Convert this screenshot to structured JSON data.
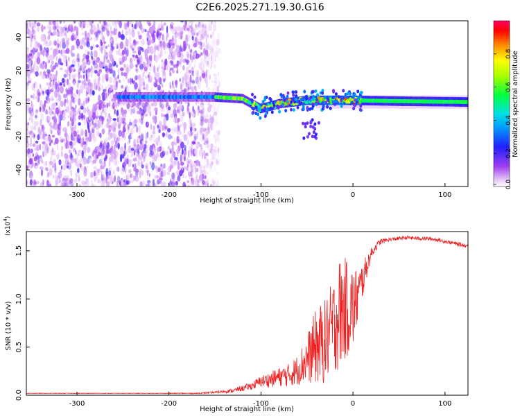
{
  "title": "C2E6.2025.271.19.30.G16",
  "chart_data": [
    {
      "type": "heatmap",
      "xlabel": "Height of straight line (km)",
      "ylabel": "Frequency (Hz)",
      "xlim": [
        -355,
        125
      ],
      "ylim": [
        -50,
        50
      ],
      "xticks": [
        -300,
        -200,
        -100,
        0,
        100
      ],
      "yticks": [
        -40,
        -20,
        0,
        20,
        40
      ],
      "colorbar": {
        "label": "Normalized spectral amplitude",
        "range": [
          0,
          1
        ],
        "ticks": [
          "0.0",
          "0.2",
          "0.4",
          "0.6",
          "0.8"
        ],
        "tick_values": [
          0.0,
          0.2,
          0.4,
          0.6,
          0.8
        ]
      },
      "noise_region_x": [
        -355,
        -145
      ],
      "ridge_center_freq_hz": [
        {
          "x": -250,
          "f": 4
        },
        {
          "x": -200,
          "f": 4
        },
        {
          "x": -150,
          "f": 4
        },
        {
          "x": -120,
          "f": 3
        },
        {
          "x": -100,
          "f": -3
        },
        {
          "x": -80,
          "f": 0
        },
        {
          "x": -50,
          "f": 2
        },
        {
          "x": 0,
          "f": 2
        },
        {
          "x": 50,
          "f": 1.5
        },
        {
          "x": 125,
          "f": 1
        }
      ]
    },
    {
      "type": "line",
      "xlabel": "Height of straight line (km)",
      "ylabel": "SNR (10 * v/v)",
      "exponent_label": "(x10",
      "exponent_power": "4",
      "exponent_close": ")",
      "xlim": [
        -355,
        125
      ],
      "ylim": [
        0,
        1.7
      ],
      "xticks": [
        -300,
        -200,
        -100,
        0,
        100
      ],
      "yticks": [
        "0.0",
        "0.5",
        "1.0",
        "1.5"
      ],
      "ytick_values": [
        0.0,
        0.5,
        1.0,
        1.5
      ],
      "color": "#ee2222",
      "series": [
        {
          "name": "SNR",
          "x": [
            -355,
            -300,
            -250,
            -200,
            -170,
            -150,
            -130,
            -110,
            -100,
            -90,
            -80,
            -70,
            -60,
            -50,
            -40,
            -30,
            -20,
            -15,
            -10,
            0,
            5,
            10,
            15,
            20,
            25,
            30,
            40,
            50,
            60,
            70,
            80,
            90,
            100,
            110,
            125
          ],
          "y": [
            0.02,
            0.02,
            0.02,
            0.02,
            0.02,
            0.03,
            0.05,
            0.1,
            0.15,
            0.17,
            0.2,
            0.22,
            0.28,
            0.4,
            0.55,
            0.6,
            0.8,
            0.9,
            0.95,
            0.95,
            1.05,
            1.2,
            1.35,
            1.48,
            1.55,
            1.6,
            1.62,
            1.63,
            1.64,
            1.63,
            1.63,
            1.62,
            1.6,
            1.58,
            1.55
          ],
          "spread": [
            0.003,
            0.003,
            0.003,
            0.004,
            0.006,
            0.01,
            0.02,
            0.04,
            0.06,
            0.08,
            0.1,
            0.12,
            0.16,
            0.25,
            0.4,
            0.45,
            0.5,
            0.6,
            0.55,
            0.45,
            0.3,
            0.2,
            0.12,
            0.06,
            0.04,
            0.03,
            0.02,
            0.02,
            0.02,
            0.02,
            0.02,
            0.02,
            0.02,
            0.02,
            0.02
          ]
        }
      ]
    }
  ],
  "colors": {
    "axis": "#000000",
    "line": "#ee2222",
    "background": "#ffffff"
  }
}
